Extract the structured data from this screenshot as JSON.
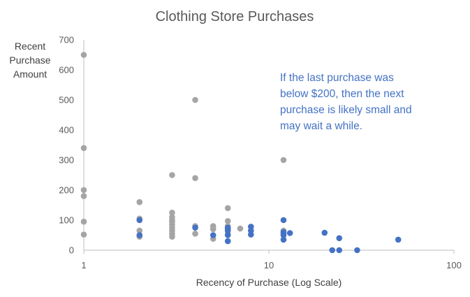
{
  "chart_data": {
    "type": "scatter",
    "title": "Clothing Store Purchases",
    "xlabel": "Recency of Purchase (Log Scale)",
    "ylabel_lines": [
      "Recent",
      "Purchase",
      "Amount"
    ],
    "x_scale": "log",
    "xlim": [
      1,
      100
    ],
    "ylim": [
      0,
      700
    ],
    "x_ticks": [
      "1",
      "10",
      "100"
    ],
    "y_ticks": [
      "0",
      "100",
      "200",
      "300",
      "400",
      "500",
      "600",
      "700"
    ],
    "grid": false,
    "legend": "none",
    "annotation": [
      "If the last purchase was",
      "below $200, then the next",
      "purchase is likely small and",
      "may wait a while."
    ],
    "colors": {
      "gray_series": "#a5a5a5",
      "blue_series": "#4472c4",
      "annotation": "#4472c4",
      "axis": "#bfbfbf"
    },
    "series": [
      {
        "color": "#a5a5a5",
        "points": [
          [
            1,
            650
          ],
          [
            1,
            340
          ],
          [
            1,
            200
          ],
          [
            1,
            180
          ],
          [
            1,
            95
          ],
          [
            1,
            52
          ],
          [
            2,
            160
          ],
          [
            2,
            105
          ],
          [
            2,
            65
          ],
          [
            2,
            45
          ],
          [
            3,
            250
          ],
          [
            3,
            125
          ],
          [
            3,
            110
          ],
          [
            3,
            100
          ],
          [
            3,
            95
          ],
          [
            3,
            85
          ],
          [
            3,
            75
          ],
          [
            3,
            65
          ],
          [
            3,
            55
          ],
          [
            3,
            45
          ],
          [
            4,
            500
          ],
          [
            4,
            240
          ],
          [
            4,
            80
          ],
          [
            4,
            55
          ],
          [
            5,
            80
          ],
          [
            5,
            70
          ],
          [
            5,
            38
          ],
          [
            6,
            140
          ],
          [
            6,
            97
          ],
          [
            6,
            80
          ],
          [
            6,
            70
          ],
          [
            6,
            55
          ],
          [
            7,
            72
          ],
          [
            12,
            300
          ],
          [
            12,
            65
          ]
        ]
      },
      {
        "color": "#4472c4",
        "points": [
          [
            2,
            100
          ],
          [
            2,
            50
          ],
          [
            4,
            75
          ],
          [
            5,
            50
          ],
          [
            6,
            75
          ],
          [
            6,
            70
          ],
          [
            6,
            65
          ],
          [
            6,
            50
          ],
          [
            6,
            30
          ],
          [
            8,
            78
          ],
          [
            8,
            65
          ],
          [
            8,
            52
          ],
          [
            12,
            100
          ],
          [
            12,
            60
          ],
          [
            12,
            55
          ],
          [
            12,
            50
          ],
          [
            12,
            35
          ],
          [
            13,
            57
          ],
          [
            20,
            58
          ],
          [
            22,
            0
          ],
          [
            24,
            0
          ],
          [
            24,
            40
          ],
          [
            30,
            0
          ],
          [
            50,
            35
          ]
        ]
      }
    ]
  }
}
